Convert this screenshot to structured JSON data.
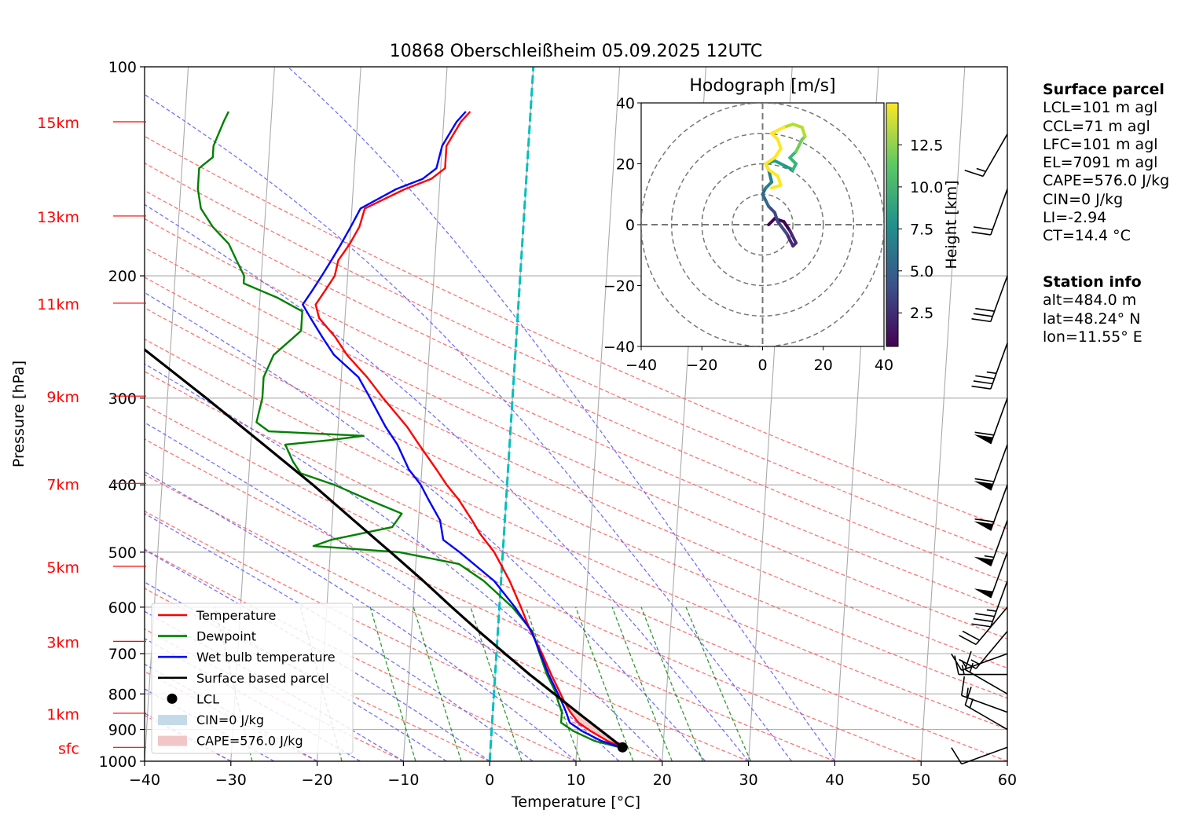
{
  "title": "10868 Oberschleißheim 05.09.2025 12UTC",
  "colors": {
    "temperature": "#ff0000",
    "dewpoint": "#008000",
    "wetbulb": "#0000ff",
    "parcel": "#000000",
    "cape_fill": "#f2c6c6",
    "cin_fill": "#c5dae9",
    "isotherm_zero": "#00bfbf",
    "dry_adiabat": "#ff5a5a",
    "moist_adiabat": "#5a5aff",
    "mixing_ratio": "#008000",
    "height_label": "#ff0000"
  },
  "chart_data": {
    "type": "skew-t log-p",
    "xlabel": "Temperature [°C]",
    "ylabel": "Pressure [hPa]",
    "xlim": [
      -40,
      60
    ],
    "ylim": [
      1000,
      100
    ],
    "y_log": true,
    "grid": true,
    "x_ticks": [
      "−40",
      "−30",
      "−20",
      "−10",
      "0",
      "10",
      "20",
      "30",
      "40",
      "50",
      "60"
    ],
    "y_ticks": [
      "100",
      "200",
      "300",
      "400",
      "500",
      "600",
      "700",
      "800",
      "900",
      "1000"
    ],
    "height_labels": [
      {
        "label": "sfc",
        "p": 955
      },
      {
        "label": "1km",
        "p": 853
      },
      {
        "label": "3km",
        "p": 672
      },
      {
        "label": "5km",
        "p": 524
      },
      {
        "label": "7km",
        "p": 398
      },
      {
        "label": "9km",
        "p": 298
      },
      {
        "label": "11km",
        "p": 219
      },
      {
        "label": "13km",
        "p": 164
      },
      {
        "label": "15km",
        "p": 120
      }
    ],
    "legend": {
      "placement": "lower-left",
      "entries": [
        {
          "label": "Temperature",
          "type": "line",
          "color": "#ff0000"
        },
        {
          "label": "Dewpoint",
          "type": "line",
          "color": "#008000"
        },
        {
          "label": "Wet bulb temperature",
          "type": "line",
          "color": "#0000ff"
        },
        {
          "label": "Surface based parcel",
          "type": "line",
          "color": "#000000"
        },
        {
          "label": "LCL",
          "type": "marker",
          "color": "#000000"
        },
        {
          "label": "CIN=0 J/kg",
          "type": "patch",
          "color": "#c5dae9"
        },
        {
          "label": "CAPE=576.0 J/kg",
          "type": "patch",
          "color": "#f2c6c6"
        }
      ]
    },
    "series": [
      {
        "name": "Temperature",
        "points": [
          [
            955,
            15.3
          ],
          [
            935,
            13.5
          ],
          [
            905,
            11.5
          ],
          [
            880,
            10.0
          ],
          [
            850,
            9.0
          ],
          [
            820,
            8.2
          ],
          [
            790,
            7.5
          ],
          [
            750,
            6.5
          ],
          [
            700,
            5.3
          ],
          [
            650,
            3.8
          ],
          [
            600,
            2.5
          ],
          [
            550,
            1.0
          ],
          [
            500,
            -1.0
          ],
          [
            470,
            -2.8
          ],
          [
            450,
            -3.8
          ],
          [
            420,
            -5.5
          ],
          [
            400,
            -7.0
          ],
          [
            380,
            -8.3
          ],
          [
            350,
            -10.5
          ],
          [
            330,
            -12.0
          ],
          [
            300,
            -15.0
          ],
          [
            280,
            -17.0
          ],
          [
            260,
            -19.5
          ],
          [
            245,
            -21.0
          ],
          [
            230,
            -23.0
          ],
          [
            220,
            -23.5
          ],
          [
            210,
            -22.5
          ],
          [
            200,
            -21.5
          ],
          [
            190,
            -21.2
          ],
          [
            180,
            -20.0
          ],
          [
            170,
            -19.0
          ],
          [
            160,
            -18.5
          ],
          [
            150,
            -14.0
          ],
          [
            145,
            -11.0
          ],
          [
            140,
            -9.5
          ],
          [
            130,
            -9.5
          ],
          [
            120,
            -8.0
          ],
          [
            116,
            -7.0
          ]
        ]
      },
      {
        "name": "Dewpoint",
        "points": [
          [
            955,
            15.0
          ],
          [
            935,
            12.0
          ],
          [
            905,
            9.5
          ],
          [
            880,
            8.0
          ],
          [
            850,
            8.0
          ],
          [
            820,
            7.5
          ],
          [
            790,
            7.0
          ],
          [
            750,
            6.0
          ],
          [
            700,
            5.0
          ],
          [
            650,
            4.0
          ],
          [
            600,
            1.5
          ],
          [
            550,
            -2.0
          ],
          [
            520,
            -5.0
          ],
          [
            500,
            -12.0
          ],
          [
            490,
            -22.0
          ],
          [
            480,
            -20.0
          ],
          [
            460,
            -13.0
          ],
          [
            440,
            -12.0
          ],
          [
            420,
            -16.0
          ],
          [
            400,
            -20.0
          ],
          [
            385,
            -24.0
          ],
          [
            370,
            -25.0
          ],
          [
            350,
            -26.0
          ],
          [
            345,
            -21.0
          ],
          [
            340,
            -17.0
          ],
          [
            335,
            -28.0
          ],
          [
            325,
            -29.5
          ],
          [
            300,
            -29.0
          ],
          [
            280,
            -29.0
          ],
          [
            260,
            -28.0
          ],
          [
            240,
            -25.0
          ],
          [
            225,
            -25.0
          ],
          [
            215,
            -28.0
          ],
          [
            210,
            -30.0
          ],
          [
            205,
            -32.0
          ],
          [
            200,
            -32.0
          ],
          [
            190,
            -33.0
          ],
          [
            180,
            -34.0
          ],
          [
            170,
            -36.0
          ],
          [
            160,
            -37.5
          ],
          [
            150,
            -38.0
          ],
          [
            140,
            -38.0
          ],
          [
            135,
            -36.5
          ],
          [
            130,
            -36.5
          ],
          [
            120,
            -35.5
          ],
          [
            116,
            -35.0
          ]
        ]
      },
      {
        "name": "Wet bulb temperature",
        "points": [
          [
            955,
            15.1
          ],
          [
            935,
            12.8
          ],
          [
            905,
            10.5
          ],
          [
            880,
            9.0
          ],
          [
            850,
            8.5
          ],
          [
            820,
            7.9
          ],
          [
            790,
            7.2
          ],
          [
            750,
            6.2
          ],
          [
            700,
            5.1
          ],
          [
            650,
            3.9
          ],
          [
            600,
            1.8
          ],
          [
            550,
            -0.8
          ],
          [
            500,
            -5.0
          ],
          [
            480,
            -7.0
          ],
          [
            450,
            -7.5
          ],
          [
            420,
            -9.0
          ],
          [
            400,
            -10.0
          ],
          [
            380,
            -11.5
          ],
          [
            350,
            -13.0
          ],
          [
            330,
            -14.5
          ],
          [
            300,
            -16.5
          ],
          [
            280,
            -18.0
          ],
          [
            260,
            -21.0
          ],
          [
            245,
            -22.5
          ],
          [
            230,
            -24.0
          ],
          [
            220,
            -25.0
          ],
          [
            210,
            -24.0
          ],
          [
            200,
            -23.0
          ],
          [
            190,
            -22.0
          ],
          [
            180,
            -21.0
          ],
          [
            170,
            -20.0
          ],
          [
            160,
            -19.0
          ],
          [
            150,
            -15.0
          ],
          [
            145,
            -12.0
          ],
          [
            140,
            -10.5
          ],
          [
            130,
            -10.0
          ],
          [
            120,
            -8.5
          ],
          [
            116,
            -7.5
          ]
        ]
      },
      {
        "name": "Surface based parcel",
        "points": [
          [
            955,
            15.3
          ],
          [
            900,
            12.5
          ],
          [
            850,
            9.8
          ],
          [
            800,
            7.0
          ],
          [
            750,
            4.0
          ],
          [
            700,
            1.0
          ],
          [
            650,
            -2.2
          ],
          [
            600,
            -5.5
          ],
          [
            550,
            -9.0
          ],
          [
            500,
            -13.0
          ],
          [
            450,
            -17.5
          ],
          [
            400,
            -22.5
          ],
          [
            350,
            -28.5
          ],
          [
            300,
            -35.5
          ],
          [
            250,
            -44.0
          ],
          [
            200,
            -54.0
          ],
          [
            175,
            -60.5
          ],
          [
            150,
            -68.0
          ],
          [
            130,
            -74.5
          ],
          [
            120,
            -79.0
          ]
        ]
      }
    ],
    "lcl": {
      "p": 955,
      "t": 15.3
    },
    "zero_isotherm": {
      "t": 0
    },
    "wind_barbs": [
      {
        "p": 955,
        "dir": 250,
        "kt": 10
      },
      {
        "p": 900,
        "dir": 300,
        "kt": 15
      },
      {
        "p": 850,
        "dir": 290,
        "kt": 15
      },
      {
        "p": 800,
        "dir": 300,
        "kt": 15
      },
      {
        "p": 750,
        "dir": 270,
        "kt": 15
      },
      {
        "p": 700,
        "dir": 250,
        "kt": 15
      },
      {
        "p": 650,
        "dir": 220,
        "kt": 15
      },
      {
        "p": 600,
        "dir": 220,
        "kt": 20
      },
      {
        "p": 550,
        "dir": 200,
        "kt": 35
      },
      {
        "p": 500,
        "dir": 200,
        "kt": 50
      },
      {
        "p": 450,
        "dir": 200,
        "kt": 55
      },
      {
        "p": 400,
        "dir": 200,
        "kt": 60
      },
      {
        "p": 350,
        "dir": 200,
        "kt": 60
      },
      {
        "p": 300,
        "dir": 200,
        "kt": 60
      },
      {
        "p": 250,
        "dir": 200,
        "kt": 35
      },
      {
        "p": 200,
        "dir": 200,
        "kt": 30
      },
      {
        "p": 150,
        "dir": 200,
        "kt": 20
      },
      {
        "p": 125,
        "dir": 210,
        "kt": 15
      }
    ]
  },
  "hodograph": {
    "title": "Hodograph [m/s]",
    "xlim": [
      -40,
      40
    ],
    "ylim": [
      -40,
      40
    ],
    "ticks": [
      "−40",
      "−20",
      "0",
      "20",
      "40"
    ],
    "colorbar_label": "Height [km]",
    "colorbar_ticks": [
      "2.5",
      "5.0",
      "7.5",
      "10.0",
      "12.5"
    ],
    "colorbar_range": [
      0.5,
      15.0
    ],
    "points": [
      [
        0.5,
        2,
        0
      ],
      [
        1,
        4,
        2
      ],
      [
        1.5,
        7,
        1
      ],
      [
        2,
        9,
        -2
      ],
      [
        2.5,
        11,
        -6
      ],
      [
        3,
        10,
        -7
      ],
      [
        3.5,
        8,
        -3
      ],
      [
        4,
        5,
        1
      ],
      [
        4.5,
        4,
        4
      ],
      [
        5,
        2,
        6
      ],
      [
        5.5,
        1,
        8
      ],
      [
        6,
        0,
        10
      ],
      [
        6.5,
        1,
        12
      ],
      [
        7,
        3,
        14
      ],
      [
        7.5,
        2,
        18
      ],
      [
        8,
        1,
        20
      ],
      [
        8.5,
        4,
        21
      ],
      [
        9,
        8,
        19
      ],
      [
        9.5,
        10,
        18
      ],
      [
        10,
        11,
        20
      ],
      [
        10.5,
        9,
        22
      ],
      [
        11,
        11,
        24
      ],
      [
        11.5,
        12,
        26
      ],
      [
        12,
        13,
        28
      ],
      [
        12.5,
        14,
        29
      ],
      [
        13,
        13,
        32
      ],
      [
        13.5,
        10,
        33
      ],
      [
        14,
        7,
        32
      ],
      [
        14.5,
        3,
        30
      ],
      [
        15,
        5,
        28
      ],
      [
        15.5,
        6,
        25
      ],
      [
        16,
        4,
        22
      ],
      [
        16.5,
        1,
        20
      ],
      [
        17,
        2,
        18
      ],
      [
        17.5,
        5,
        16
      ],
      [
        18,
        6,
        13
      ],
      [
        18.5,
        3,
        12
      ]
    ]
  },
  "surface_parcel": {
    "heading": "Surface parcel",
    "lines": [
      "LCL=101 m agl",
      "CCL=71 m agl",
      "LFC=101 m agl",
      "EL=7091 m agl",
      "CAPE=576.0 J/kg",
      "CIN=0 J/kg",
      "LI=-2.94",
      "CT=14.4 °C"
    ]
  },
  "station_info": {
    "heading": "Station info",
    "lines": [
      "alt=484.0 m",
      "lat=48.24° N",
      "lon=11.55° E"
    ]
  }
}
